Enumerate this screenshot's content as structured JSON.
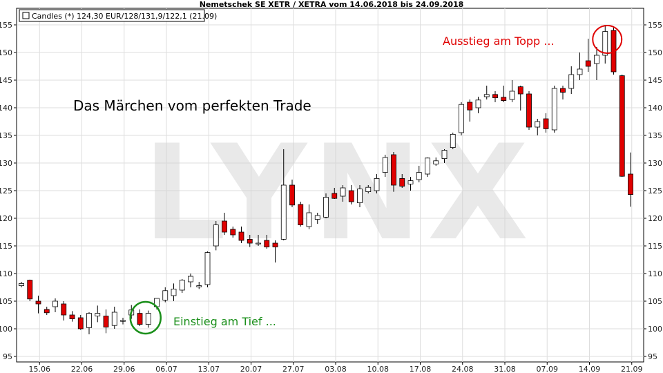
{
  "chart_data": {
    "type": "candlestick",
    "title": "Nemetschek SE XETR / XETRA vom 14.06.2018 bis 24.09.2018",
    "legend": {
      "label": "Candles (*) 124,30 EUR/128/131,9/122,1 (21.09)",
      "position": "top-left"
    },
    "ylim": [
      94,
      158
    ],
    "y_ticks": [
      95,
      100,
      105,
      110,
      115,
      120,
      125,
      130,
      135,
      140,
      145,
      150,
      155
    ],
    "x_ticks": [
      {
        "label": "15.06",
        "index": 1
      },
      {
        "label": "22.06",
        "index": 6
      },
      {
        "label": "29.06",
        "index": 11
      },
      {
        "label": "06.07",
        "index": 16
      },
      {
        "label": "13.07",
        "index": 21
      },
      {
        "label": "20.07",
        "index": 26
      },
      {
        "label": "27.07",
        "index": 31
      },
      {
        "label": "03.08",
        "index": 36
      },
      {
        "label": "10.08",
        "index": 41
      },
      {
        "label": "17.08",
        "index": 46
      },
      {
        "label": "24.08",
        "index": 51
      },
      {
        "label": "31.08",
        "index": 56
      },
      {
        "label": "07.09",
        "index": 61
      },
      {
        "label": "14.09",
        "index": 66
      },
      {
        "label": "21.09",
        "index": 71
      }
    ],
    "grid": true,
    "watermark": "LYNX",
    "colors": {
      "up": "#ffffff",
      "down": "#e00000",
      "circle_low": "#1a8f1a",
      "circle_high": "#e00000"
    },
    "candles": [
      [
        107.8,
        108.5,
        107.5,
        108.2
      ],
      [
        108.8,
        108.9,
        105.0,
        105.4
      ],
      [
        105.0,
        106.0,
        102.8,
        104.5
      ],
      [
        103.5,
        104.0,
        102.5,
        102.9
      ],
      [
        104.0,
        105.5,
        103.0,
        105.0
      ],
      [
        104.5,
        105.0,
        101.5,
        102.5
      ],
      [
        102.5,
        103.2,
        101.3,
        101.8
      ],
      [
        102.0,
        102.5,
        99.8,
        100.0
      ],
      [
        100.2,
        103.0,
        99.0,
        102.8
      ],
      [
        102.3,
        104.2,
        101.2,
        102.8
      ],
      [
        102.3,
        103.5,
        99.2,
        100.3
      ],
      [
        100.6,
        104.0,
        100.0,
        103.0
      ],
      [
        101.5,
        102.0,
        100.8,
        101.5
      ],
      [
        102.5,
        104.3,
        101.8,
        103.4
      ],
      [
        102.8,
        103.5,
        100.5,
        100.8
      ],
      [
        100.8,
        103.3,
        100.2,
        102.8
      ],
      [
        104.0,
        105.0,
        103.5,
        105.5
      ],
      [
        105.2,
        107.5,
        104.8,
        106.9
      ],
      [
        106.0,
        108.2,
        105.0,
        107.2
      ],
      [
        107.0,
        109.0,
        106.5,
        108.8
      ],
      [
        108.5,
        110.0,
        107.5,
        109.5
      ],
      [
        107.6,
        108.5,
        107.2,
        107.8
      ],
      [
        108.0,
        114.0,
        107.5,
        113.8
      ],
      [
        115.0,
        119.5,
        114.2,
        118.8
      ],
      [
        119.5,
        121.0,
        117.0,
        117.5
      ],
      [
        118.0,
        118.5,
        116.5,
        117.0
      ],
      [
        117.5,
        118.5,
        115.5,
        116.0
      ],
      [
        116.2,
        117.0,
        114.8,
        115.5
      ],
      [
        115.5,
        117.0,
        115.0,
        115.5
      ],
      [
        116.0,
        117.0,
        114.5,
        114.8
      ],
      [
        115.5,
        116.0,
        112.0,
        114.8
      ],
      [
        116.2,
        132.5,
        116.0,
        126.0
      ],
      [
        126.0,
        127.0,
        122.0,
        122.4
      ],
      [
        122.5,
        123.0,
        118.5,
        118.8
      ],
      [
        118.5,
        122.5,
        118.0,
        121.0
      ],
      [
        119.8,
        121.0,
        119.0,
        120.5
      ],
      [
        120.2,
        124.5,
        120.0,
        123.8
      ],
      [
        124.5,
        125.5,
        123.5,
        123.6
      ],
      [
        124.0,
        126.0,
        123.0,
        125.5
      ],
      [
        125.0,
        126.0,
        122.5,
        123.0
      ],
      [
        122.8,
        126.0,
        122.0,
        125.3
      ],
      [
        124.8,
        126.0,
        124.5,
        125.6
      ],
      [
        125.0,
        128.0,
        124.5,
        127.2
      ],
      [
        128.3,
        131.5,
        127.5,
        131.0
      ],
      [
        131.5,
        132.0,
        124.8,
        126.0
      ],
      [
        127.2,
        128.0,
        125.5,
        125.8
      ],
      [
        126.2,
        127.5,
        125.0,
        126.8
      ],
      [
        127.0,
        129.5,
        126.5,
        128.3
      ],
      [
        128.0,
        131.0,
        127.5,
        130.9
      ],
      [
        129.8,
        131.0,
        129.5,
        130.4
      ],
      [
        130.8,
        132.5,
        130.0,
        132.3
      ],
      [
        132.8,
        135.5,
        132.5,
        135.2
      ],
      [
        135.5,
        141.0,
        135.0,
        140.6
      ],
      [
        141.0,
        141.5,
        137.5,
        139.6
      ],
      [
        140.0,
        142.0,
        139.0,
        141.4
      ],
      [
        142.0,
        144.0,
        141.5,
        142.4
      ],
      [
        142.4,
        143.0,
        141.0,
        141.8
      ],
      [
        141.9,
        144.0,
        141.0,
        141.3
      ],
      [
        141.5,
        145.0,
        141.0,
        143.0
      ],
      [
        143.8,
        144.0,
        139.5,
        142.5
      ],
      [
        142.5,
        143.0,
        136.0,
        136.5
      ],
      [
        136.5,
        138.0,
        135.0,
        137.5
      ],
      [
        138.0,
        139.0,
        135.5,
        136.2
      ],
      [
        136.0,
        144.0,
        135.5,
        143.5
      ],
      [
        143.5,
        144.0,
        141.5,
        142.8
      ],
      [
        143.5,
        147.5,
        142.5,
        146.0
      ],
      [
        146.0,
        150.0,
        145.0,
        147.0
      ],
      [
        148.5,
        152.5,
        146.5,
        147.5
      ],
      [
        148.0,
        151.0,
        145.0,
        149.5
      ],
      [
        149.5,
        155.0,
        148.0,
        153.8
      ],
      [
        154.0,
        154.5,
        146.0,
        146.5
      ],
      [
        145.8,
        146.0,
        127.5,
        127.6
      ],
      [
        128.0,
        131.9,
        122.1,
        124.3
      ]
    ],
    "annotations": [
      {
        "text": "Das Märchen vom perfekten Trade",
        "position": "upper-left"
      },
      {
        "text": "Einstieg am Tief ...",
        "color": "#1a8f1a",
        "marks_index": 15,
        "level": 102.0
      },
      {
        "text": "Ausstieg am Topp ...",
        "color": "#e00000",
        "marks_index": 69,
        "level": 153.0
      }
    ]
  }
}
